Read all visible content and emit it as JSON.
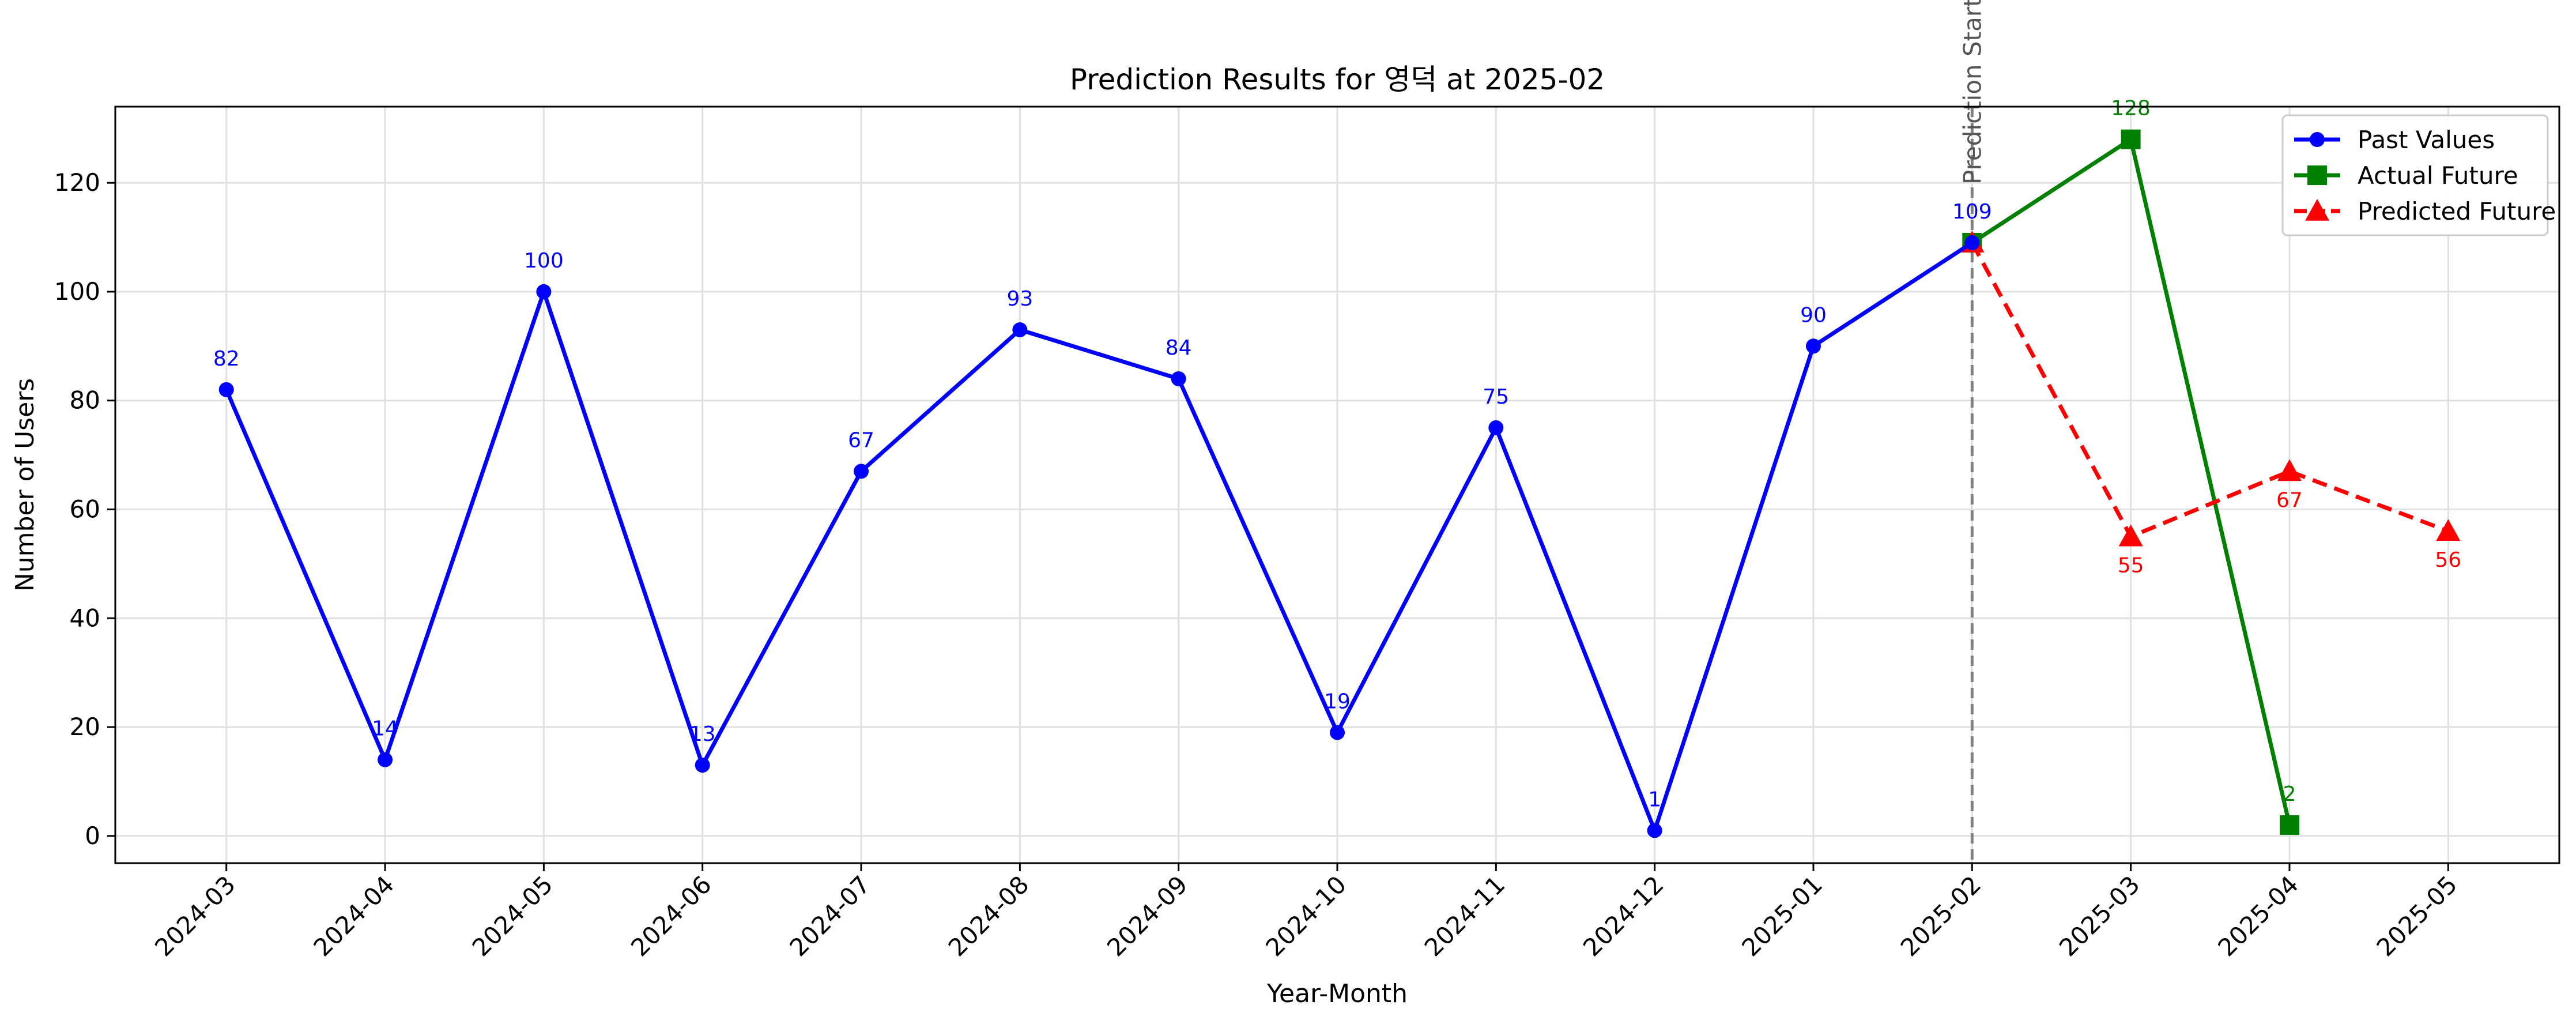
{
  "chart_data": {
    "type": "line",
    "title": "Prediction Results for 영덕 at 2025-02",
    "xlabel": "Year-Month",
    "ylabel": "Number of Users",
    "categories": [
      "2024-03",
      "2024-04",
      "2024-05",
      "2024-06",
      "2024-07",
      "2024-08",
      "2024-09",
      "2024-10",
      "2024-11",
      "2024-12",
      "2025-01",
      "2025-02",
      "2025-03",
      "2025-04",
      "2025-05"
    ],
    "ylim": [
      -5,
      134
    ],
    "yticks": [
      0,
      20,
      40,
      60,
      80,
      100,
      120
    ],
    "grid": true,
    "legend_position": "top-right",
    "prediction_marker": {
      "x": "2025-02",
      "label": "Prediction Start",
      "color": "#808080"
    },
    "series": [
      {
        "name": "Past Values",
        "color": "#0000ff",
        "marker": "circle",
        "dash": "solid",
        "label_position": "above",
        "x": [
          "2024-03",
          "2024-04",
          "2024-05",
          "2024-06",
          "2024-07",
          "2024-08",
          "2024-09",
          "2024-10",
          "2024-11",
          "2024-12",
          "2025-01",
          "2025-02"
        ],
        "values": [
          82,
          14,
          100,
          13,
          67,
          93,
          84,
          19,
          75,
          1,
          90,
          109
        ]
      },
      {
        "name": "Actual Future",
        "color": "#008000",
        "marker": "square",
        "dash": "solid",
        "label_position": "above",
        "x": [
          "2025-02",
          "2025-03",
          "2025-04"
        ],
        "values": [
          109,
          128,
          2
        ],
        "labeled": [
          false,
          true,
          true
        ]
      },
      {
        "name": "Predicted Future",
        "color": "#ff0000",
        "marker": "triangle",
        "dash": "dashed",
        "label_position": "below",
        "x": [
          "2025-02",
          "2025-03",
          "2025-04",
          "2025-05"
        ],
        "values": [
          109,
          55,
          67,
          56
        ],
        "labeled": [
          false,
          true,
          true,
          true
        ]
      }
    ]
  }
}
